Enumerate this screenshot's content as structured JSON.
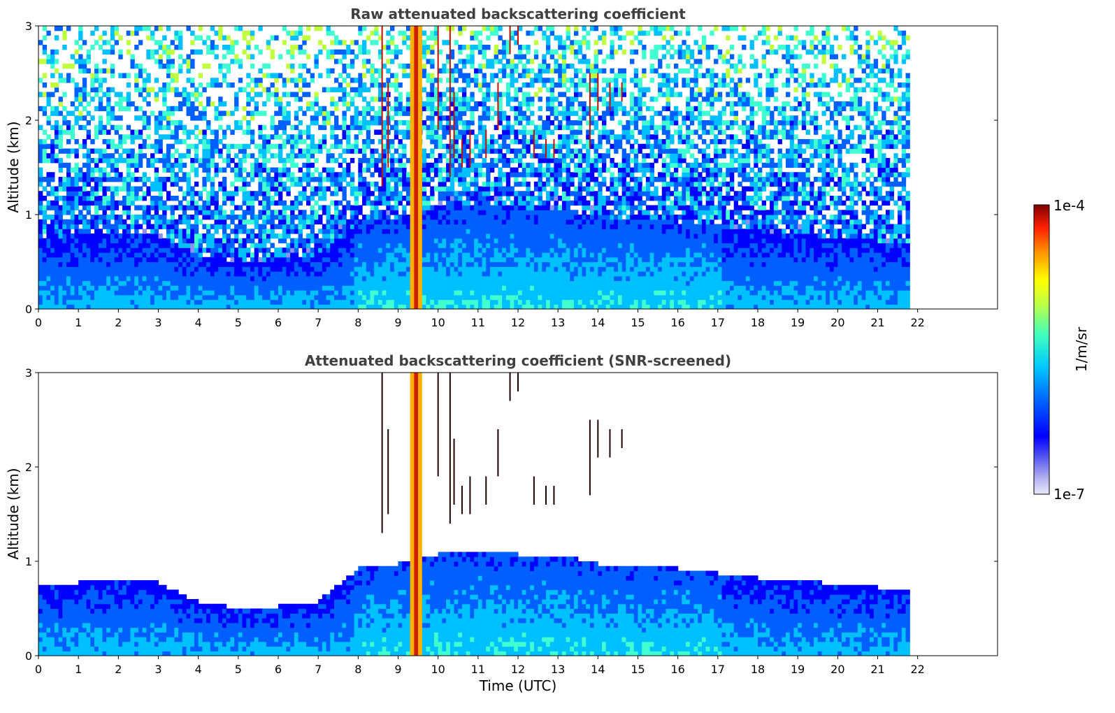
{
  "chart_data": [
    {
      "type": "heatmap",
      "title": "Raw attenuated backscattering coefficient",
      "xlabel": "",
      "ylabel": "Altitude (km)",
      "xlim": [
        0,
        24
      ],
      "ylim": [
        0,
        3
      ],
      "xticks": [
        "0",
        "1",
        "2",
        "3",
        "4",
        "5",
        "6",
        "7",
        "8",
        "9",
        "10",
        "11",
        "12",
        "13",
        "14",
        "15",
        "16",
        "17",
        "18",
        "19",
        "20",
        "21",
        "22"
      ],
      "yticks": [
        "0",
        "1",
        "2",
        "3"
      ],
      "data_end_time": 21.8,
      "grid": false,
      "screened": false
    },
    {
      "type": "heatmap",
      "title": "Attenuated backscattering coefficient (SNR-screened)",
      "xlabel": "Time (UTC)",
      "ylabel": "Altitude (km)",
      "xlim": [
        0,
        24
      ],
      "ylim": [
        0,
        3
      ],
      "xticks": [
        "0",
        "1",
        "2",
        "3",
        "4",
        "5",
        "6",
        "7",
        "8",
        "9",
        "10",
        "11",
        "12",
        "13",
        "14",
        "15",
        "16",
        "17",
        "18",
        "19",
        "20",
        "21",
        "22"
      ],
      "yticks": [
        "0",
        "1",
        "2",
        "3"
      ],
      "data_end_time": 21.8,
      "grid": false,
      "screened": true
    }
  ],
  "colorbar": {
    "label": "1/m/sr",
    "max_label": "1e-4",
    "min_label": "1e-7",
    "scale": "log",
    "colormap": "jet",
    "colors": [
      "#e8e8f8",
      "#c8c8f0",
      "#9090f0",
      "#0000ff",
      "#0060ff",
      "#00c0ff",
      "#40ffd0",
      "#c0ff40",
      "#ffff00",
      "#ffa000",
      "#ff3000",
      "#c00000",
      "#800000"
    ]
  },
  "features": {
    "boundary_layer_top_km": [
      [
        0,
        0.7
      ],
      [
        1,
        0.75
      ],
      [
        2,
        0.8
      ],
      [
        3,
        0.75
      ],
      [
        4,
        0.55
      ],
      [
        5,
        0.48
      ],
      [
        6,
        0.5
      ],
      [
        7,
        0.55
      ],
      [
        8,
        0.9
      ],
      [
        9,
        0.95
      ],
      [
        10,
        1.05
      ],
      [
        11,
        1.1
      ],
      [
        12,
        1.05
      ],
      [
        13,
        1.05
      ],
      [
        14,
        0.95
      ],
      [
        15,
        0.95
      ],
      [
        16,
        0.9
      ],
      [
        17,
        0.85
      ],
      [
        18,
        0.8
      ],
      [
        19,
        0.8
      ],
      [
        20,
        0.72
      ],
      [
        21,
        0.7
      ],
      [
        21.8,
        0.7
      ]
    ],
    "strong_column_hours": [
      9.3,
      9.6
    ],
    "cloud_streaks": [
      {
        "t": 8.6,
        "z0": 1.3,
        "z1": 3.0
      },
      {
        "t": 8.75,
        "z0": 1.5,
        "z1": 2.4
      },
      {
        "t": 10.0,
        "z0": 1.9,
        "z1": 3.0
      },
      {
        "t": 10.3,
        "z0": 1.4,
        "z1": 3.0
      },
      {
        "t": 10.4,
        "z0": 1.6,
        "z1": 2.3
      },
      {
        "t": 10.6,
        "z0": 1.5,
        "z1": 1.8
      },
      {
        "t": 10.8,
        "z0": 1.5,
        "z1": 1.9
      },
      {
        "t": 11.2,
        "z0": 1.6,
        "z1": 1.9
      },
      {
        "t": 11.5,
        "z0": 1.9,
        "z1": 2.4
      },
      {
        "t": 11.8,
        "z0": 2.7,
        "z1": 3.0
      },
      {
        "t": 12.0,
        "z0": 2.8,
        "z1": 3.0
      },
      {
        "t": 12.4,
        "z0": 1.6,
        "z1": 1.9
      },
      {
        "t": 12.7,
        "z0": 1.6,
        "z1": 1.8
      },
      {
        "t": 12.9,
        "z0": 1.6,
        "z1": 1.8
      },
      {
        "t": 13.8,
        "z0": 1.7,
        "z1": 2.5
      },
      {
        "t": 14.0,
        "z0": 2.1,
        "z1": 2.5
      },
      {
        "t": 14.3,
        "z0": 2.1,
        "z1": 2.4
      },
      {
        "t": 14.6,
        "z0": 2.2,
        "z1": 2.4
      }
    ]
  }
}
